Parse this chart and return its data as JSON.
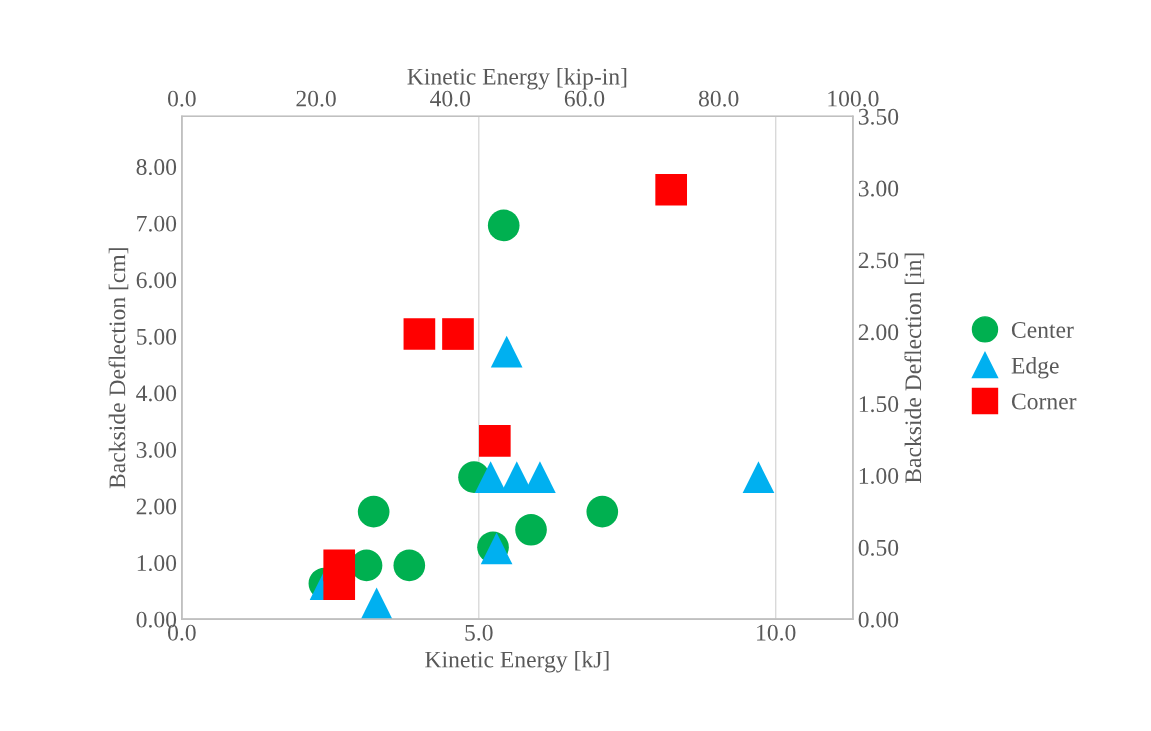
{
  "chart_data": {
    "type": "scatter",
    "xlabel": "Kinetic Energy [kJ]",
    "ylabel": "Backside Deflection [cm]",
    "y2label": "Backside Deflection [in]",
    "x2label": "Kinetic Energy [kip-in]",
    "xlim": [
      0,
      11.3
    ],
    "xticks": [
      {
        "value": 0,
        "label": "0.0"
      },
      {
        "value": 5,
        "label": "5.0"
      },
      {
        "value": 10,
        "label": "10.0"
      }
    ],
    "ylim": [
      0,
      8.89
    ],
    "yticks": [
      {
        "value": 0,
        "label": "0.00"
      },
      {
        "value": 1,
        "label": "1.00"
      },
      {
        "value": 2,
        "label": "2.00"
      },
      {
        "value": 3,
        "label": "3.00"
      },
      {
        "value": 4,
        "label": "4.00"
      },
      {
        "value": 5,
        "label": "5.00"
      },
      {
        "value": 6,
        "label": "6.00"
      },
      {
        "value": 7,
        "label": "7.00"
      },
      {
        "value": 8,
        "label": "8.00"
      }
    ],
    "y2lim": [
      0,
      3.5
    ],
    "y2ticks": [
      {
        "value": 0,
        "label": "0.00"
      },
      {
        "value": 0.5,
        "label": "0.50"
      },
      {
        "value": 1,
        "label": "1.00"
      },
      {
        "value": 1.5,
        "label": "1.50"
      },
      {
        "value": 2,
        "label": "2.00"
      },
      {
        "value": 2.5,
        "label": "2.50"
      },
      {
        "value": 3,
        "label": "3.00"
      },
      {
        "value": 3.5,
        "label": "3.50"
      }
    ],
    "x2lim": [
      0,
      100
    ],
    "x2ticks": [
      {
        "value": 0,
        "label": "0.0"
      },
      {
        "value": 20,
        "label": "20.0"
      },
      {
        "value": 40,
        "label": "40.0"
      },
      {
        "value": 60,
        "label": "60.0"
      },
      {
        "value": 80,
        "label": "80.0"
      },
      {
        "value": 100,
        "label": "100.0"
      }
    ],
    "grid": "x",
    "legend": "right",
    "series": [
      {
        "name": "Center",
        "color": "#00b050",
        "marker": "circle",
        "x": [
          2.4,
          3.11,
          3.23,
          3.83,
          4.92,
          5.24,
          5.42,
          5.88,
          7.08
        ],
        "values": [
          0.63,
          0.95,
          1.9,
          0.95,
          2.51,
          1.27,
          6.96,
          1.58,
          1.9
        ]
      },
      {
        "name": "Edge",
        "color": "#00b0f0",
        "marker": "triangle",
        "x": [
          2.42,
          3.28,
          5.2,
          5.3,
          5.47,
          5.64,
          6.03,
          9.71
        ],
        "values": [
          0.62,
          0.28,
          2.51,
          1.25,
          4.73,
          2.51,
          2.51,
          2.51
        ]
      },
      {
        "name": "Corner",
        "color": "#ff0000",
        "marker": "square",
        "x": [
          2.65,
          2.65,
          4.0,
          4.65,
          5.27,
          8.24
        ],
        "values": [
          0.95,
          0.62,
          5.04,
          5.04,
          3.15,
          7.59
        ]
      }
    ]
  }
}
